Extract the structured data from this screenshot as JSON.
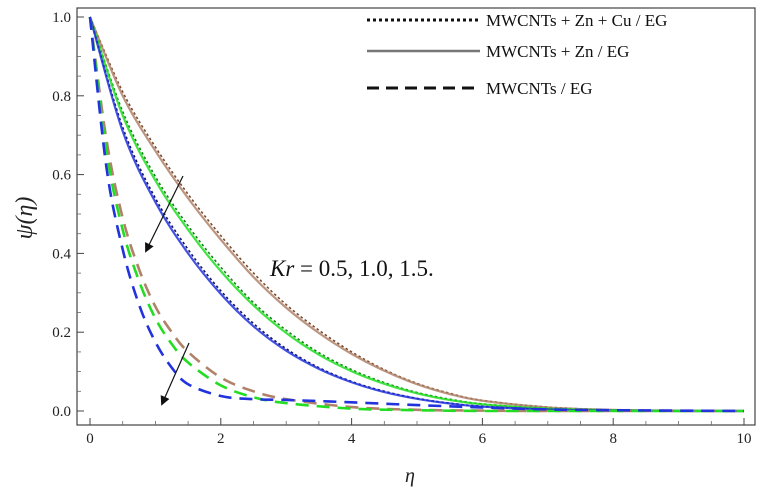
{
  "chart_data": {
    "type": "line",
    "title": "",
    "xlabel": "η",
    "ylabel": "ψ(η)",
    "xlim": [
      0,
      10
    ],
    "ylim": [
      0,
      1.0
    ],
    "x_ticks": [
      0,
      2,
      4,
      6,
      8,
      10
    ],
    "x_tick_labels": [
      "0",
      "2",
      "4",
      "6",
      "8",
      "10"
    ],
    "y_ticks": [
      0,
      0.2,
      0.4,
      0.6,
      0.8,
      1.0
    ],
    "y_tick_labels": [
      "0.0",
      "0.2",
      "0.4",
      "0.6",
      "0.8",
      "1.0"
    ],
    "grid": false,
    "legend_position": "top-right",
    "legend": [
      {
        "label": "MWCNTs + Zn + Cu / EG",
        "style": "dotted"
      },
      {
        "label": "MWCNTs + Zn / EG",
        "style": "solid"
      },
      {
        "label": "MWCNTs / EG",
        "style": "dashed"
      }
    ],
    "annotation": {
      "prefix": "Kr",
      "text": " = 0.5, 1.0, 1.5."
    },
    "colors": {
      "Kr=0.5": "#b0826a",
      "Kr=1.0": "#22dd22",
      "Kr=1.5": "#2233dd"
    },
    "series": [
      {
        "fluid": "MWCNTs + Zn + Cu / EG",
        "kr": 0.5,
        "style": "dotted",
        "color": "#7a4a2e",
        "x": [
          0,
          0.5,
          1,
          1.5,
          2,
          2.5,
          3,
          3.5,
          4,
          4.5,
          5,
          5.5,
          6,
          7,
          8,
          9,
          10
        ],
        "y": [
          1.0,
          0.81,
          0.67,
          0.55,
          0.445,
          0.35,
          0.27,
          0.205,
          0.15,
          0.105,
          0.07,
          0.045,
          0.027,
          0.01,
          0.003,
          0.001,
          0.0
        ]
      },
      {
        "fluid": "MWCNTs + Zn / EG",
        "kr": 0.5,
        "style": "solid",
        "color": "#b0826a",
        "x": [
          0,
          0.5,
          1,
          1.5,
          2,
          2.5,
          3,
          3.5,
          4,
          4.5,
          5,
          5.5,
          6,
          7,
          8,
          9,
          10
        ],
        "y": [
          1.0,
          0.8,
          0.66,
          0.54,
          0.435,
          0.34,
          0.262,
          0.198,
          0.145,
          0.102,
          0.068,
          0.043,
          0.026,
          0.009,
          0.003,
          0.001,
          0.0
        ]
      },
      {
        "fluid": "MWCNTs + Zn + Cu / EG",
        "kr": 1.0,
        "style": "dotted",
        "color": "#118811",
        "x": [
          0,
          0.5,
          1,
          1.5,
          2,
          2.5,
          3,
          3.5,
          4,
          4.5,
          5,
          5.5,
          6,
          7,
          8,
          9,
          10
        ],
        "y": [
          1.0,
          0.76,
          0.595,
          0.47,
          0.365,
          0.275,
          0.205,
          0.148,
          0.105,
          0.072,
          0.047,
          0.03,
          0.018,
          0.006,
          0.002,
          0.0,
          0.0
        ]
      },
      {
        "fluid": "MWCNTs + Zn / EG",
        "kr": 1.0,
        "style": "solid",
        "color": "#22dd22",
        "x": [
          0,
          0.5,
          1,
          1.5,
          2,
          2.5,
          3,
          3.5,
          4,
          4.5,
          5,
          5.5,
          6,
          7,
          8,
          9,
          10
        ],
        "y": [
          1.0,
          0.75,
          0.585,
          0.46,
          0.355,
          0.268,
          0.198,
          0.143,
          0.101,
          0.069,
          0.045,
          0.028,
          0.017,
          0.006,
          0.002,
          0.0,
          0.0
        ]
      },
      {
        "fluid": "MWCNTs + Zn + Cu / EG",
        "kr": 1.5,
        "style": "dotted",
        "color": "#111166",
        "x": [
          0,
          0.5,
          1,
          1.5,
          2,
          2.5,
          3,
          3.5,
          4,
          4.5,
          5,
          5.5,
          6,
          7,
          8,
          9,
          10
        ],
        "y": [
          1.0,
          0.72,
          0.54,
          0.41,
          0.305,
          0.222,
          0.158,
          0.11,
          0.075,
          0.05,
          0.032,
          0.02,
          0.012,
          0.004,
          0.001,
          0.0,
          0.0
        ]
      },
      {
        "fluid": "MWCNTs + Zn / EG",
        "kr": 1.5,
        "style": "solid",
        "color": "#2233dd",
        "x": [
          0,
          0.5,
          1,
          1.5,
          2,
          2.5,
          3,
          3.5,
          4,
          4.5,
          5,
          5.5,
          6,
          7,
          8,
          9,
          10
        ],
        "y": [
          1.0,
          0.71,
          0.53,
          0.4,
          0.297,
          0.215,
          0.153,
          0.107,
          0.073,
          0.048,
          0.031,
          0.019,
          0.011,
          0.004,
          0.001,
          0.0,
          0.0
        ]
      },
      {
        "fluid": "MWCNTs / EG",
        "kr": 0.5,
        "style": "dashed",
        "color": "#b0826a",
        "x": [
          0,
          0.25,
          0.5,
          0.75,
          1,
          1.25,
          1.5,
          2,
          2.5,
          3,
          4,
          5,
          6,
          7,
          8,
          10
        ],
        "y": [
          1.0,
          0.69,
          0.49,
          0.36,
          0.265,
          0.2,
          0.15,
          0.085,
          0.05,
          0.03,
          0.01,
          0.003,
          0.001,
          0.0,
          0.0,
          0.0
        ]
      },
      {
        "fluid": "MWCNTs / EG",
        "kr": 1.0,
        "style": "dashed",
        "color": "#22dd22",
        "x": [
          0,
          0.25,
          0.5,
          0.75,
          1,
          1.25,
          1.5,
          2,
          2.5,
          3,
          4,
          5,
          6,
          7,
          8,
          10
        ],
        "y": [
          1.0,
          0.66,
          0.46,
          0.33,
          0.235,
          0.17,
          0.123,
          0.065,
          0.035,
          0.02,
          0.006,
          0.002,
          0.0,
          0.0,
          0.0,
          0.0
        ]
      },
      {
        "fluid": "MWCNTs / EG",
        "kr": 1.5,
        "style": "dashed",
        "color": "#2233dd",
        "x": [
          0,
          0.25,
          0.5,
          0.75,
          1,
          1.25,
          1.5,
          2,
          2.5,
          3,
          4,
          5,
          6,
          7,
          8,
          10
        ],
        "y": [
          1.0,
          0.62,
          0.41,
          0.27,
          0.175,
          0.11,
          0.068,
          0.038,
          0.03,
          0.028,
          0.022,
          0.015,
          0.009,
          0.004,
          0.002,
          0.0
        ]
      }
    ]
  }
}
